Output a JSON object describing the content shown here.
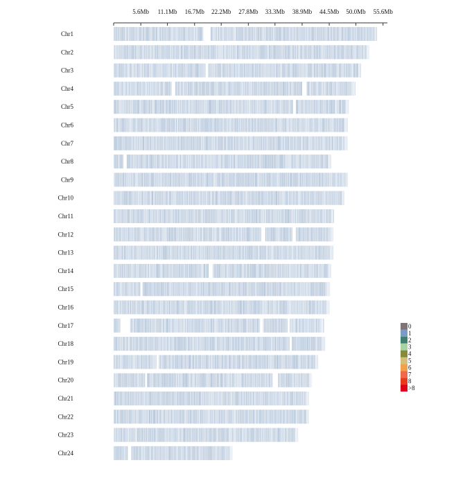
{
  "chart_data": {
    "type": "heatmap",
    "title": "",
    "xlabel": "",
    "ylabel": "",
    "x_unit": "Mb",
    "xlim": [
      0,
      56.5
    ],
    "x_ticks": [
      {
        "value": 5.6,
        "label": "5.6Mb"
      },
      {
        "value": 11.1,
        "label": "11.1Mb"
      },
      {
        "value": 16.7,
        "label": "16.7Mb"
      },
      {
        "value": 22.2,
        "label": "22.2Mb"
      },
      {
        "value": 27.8,
        "label": "27.8Mb"
      },
      {
        "value": 33.3,
        "label": "33.3Mb"
      },
      {
        "value": 38.9,
        "label": "38.9Mb"
      },
      {
        "value": 44.5,
        "label": "44.5Mb"
      },
      {
        "value": 50.0,
        "label": "50.0Mb"
      },
      {
        "value": 55.6,
        "label": "55.6Mb"
      }
    ],
    "chromosomes": [
      {
        "name": "Chr1",
        "length": 54.3,
        "gaps": [
          [
            18.5,
            20.0
          ]
        ]
      },
      {
        "name": "Chr2",
        "length": 52.8,
        "gaps": []
      },
      {
        "name": "Chr3",
        "length": 51.0,
        "gaps": [
          [
            19.0,
            19.5
          ]
        ]
      },
      {
        "name": "Chr4",
        "length": 49.8,
        "gaps": [
          [
            12.0,
            12.7
          ],
          [
            38.9,
            39.8
          ]
        ]
      },
      {
        "name": "Chr5",
        "length": 48.5,
        "gaps": [
          [
            37.0,
            37.6
          ]
        ]
      },
      {
        "name": "Chr6",
        "length": 48.3,
        "gaps": []
      },
      {
        "name": "Chr7",
        "length": 48.3,
        "gaps": []
      },
      {
        "name": "Chr8",
        "length": 44.8,
        "gaps": [
          [
            2.0,
            2.7
          ]
        ]
      },
      {
        "name": "Chr9",
        "length": 48.3,
        "gaps": []
      },
      {
        "name": "Chr10",
        "length": 47.6,
        "gaps": []
      },
      {
        "name": "Chr11",
        "length": 45.4,
        "gaps": []
      },
      {
        "name": "Chr12",
        "length": 45.3,
        "gaps": [
          [
            30.5,
            31.3
          ],
          [
            36.9,
            37.6
          ]
        ]
      },
      {
        "name": "Chr13",
        "length": 45.2,
        "gaps": []
      },
      {
        "name": "Chr14",
        "length": 44.8,
        "gaps": [
          [
            19.6,
            20.4
          ]
        ]
      },
      {
        "name": "Chr15",
        "length": 44.6,
        "gaps": [
          [
            5.5,
            5.9
          ]
        ]
      },
      {
        "name": "Chr16",
        "length": 44.5,
        "gaps": []
      },
      {
        "name": "Chr17",
        "length": 43.3,
        "gaps": [
          [
            1.4,
            3.4
          ],
          [
            30.2,
            30.8
          ],
          [
            35.9,
            36.3
          ]
        ]
      },
      {
        "name": "Chr18",
        "length": 43.6,
        "gaps": [
          [
            36.3,
            36.8
          ]
        ]
      },
      {
        "name": "Chr19",
        "length": 42.2,
        "gaps": [
          [
            8.9,
            9.3
          ]
        ]
      },
      {
        "name": "Chr20",
        "length": 40.9,
        "gaps": [
          [
            6.5,
            6.9
          ],
          [
            32.8,
            33.9
          ]
        ]
      },
      {
        "name": "Chr21",
        "length": 40.3,
        "gaps": []
      },
      {
        "name": "Chr22",
        "length": 40.3,
        "gaps": []
      },
      {
        "name": "Chr23",
        "length": 38.0,
        "gaps": []
      },
      {
        "name": "Chr24",
        "length": 24.5,
        "gaps": [
          [
            3.0,
            3.6
          ]
        ]
      }
    ],
    "legend": {
      "placement": "right",
      "items": [
        {
          "label": "0",
          "color": "#7f7378"
        },
        {
          "label": "1",
          "color": "#7a9cc2"
        },
        {
          "label": "2",
          "color": "#3e7f6f"
        },
        {
          "label": "3",
          "color": "#a6d4a4"
        },
        {
          "label": "4",
          "color": "#868a3b"
        },
        {
          "label": "5",
          "color": "#d3c07a"
        },
        {
          "label": "6",
          "color": "#f2a04c"
        },
        {
          "label": "7",
          "color": "#ef6a4a"
        },
        {
          "label": "8",
          "color": "#e83a1f"
        },
        {
          "label": ">8",
          "color": "#e0001a"
        }
      ]
    },
    "density_base_color": "#c5d3e3",
    "grid": false
  }
}
